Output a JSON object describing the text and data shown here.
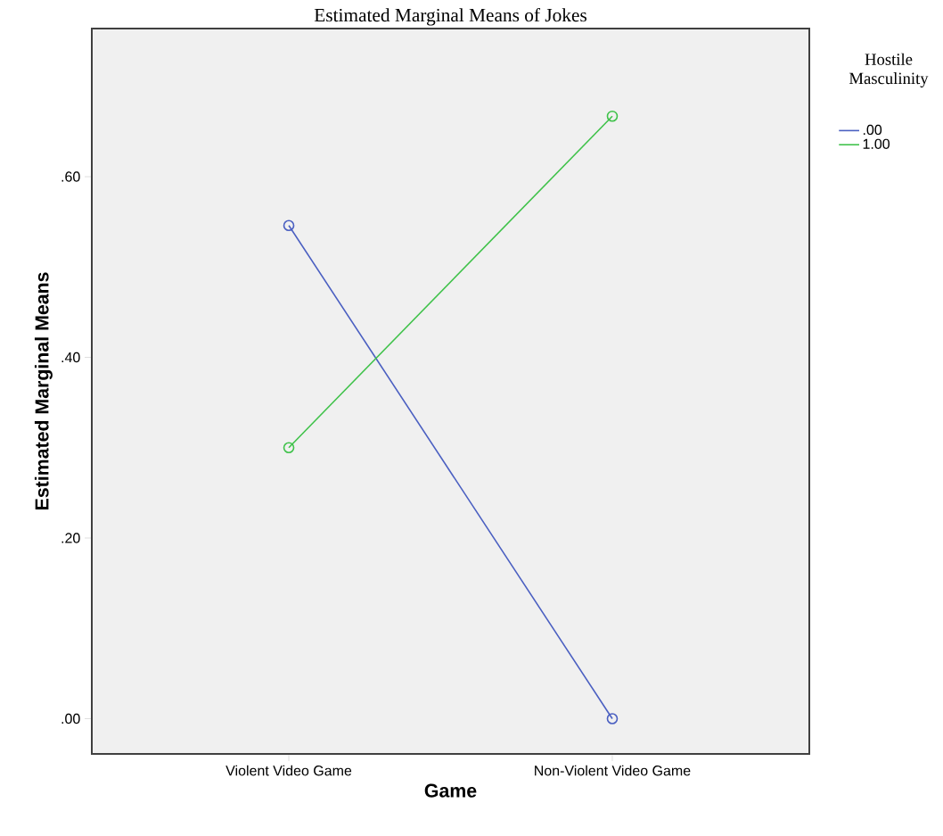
{
  "chart_data": {
    "type": "line",
    "title": "Estimated Marginal Means of Jokes",
    "xlabel": "Game",
    "ylabel": "Estimated Marginal Means",
    "legend_title": "Hostile Masculinity",
    "categories": [
      "Violent Video Game",
      "Non-Violent Video Game"
    ],
    "series": [
      {
        "name": ".00",
        "color": "#4a5fc1",
        "values": [
          0.546,
          0.0
        ]
      },
      {
        "name": "1.00",
        "color": "#3fc24a",
        "values": [
          0.3,
          0.667
        ]
      }
    ],
    "ylim": [
      -0.039,
      0.764
    ],
    "yticks": [
      {
        "value": 0.0,
        "label": ".00"
      },
      {
        "value": 0.2,
        "label": ".20"
      },
      {
        "value": 0.4,
        "label": ".40"
      },
      {
        "value": 0.6,
        "label": ".60"
      }
    ],
    "grid": false,
    "legend": "right",
    "marker": "circle",
    "line_style": "solid"
  }
}
